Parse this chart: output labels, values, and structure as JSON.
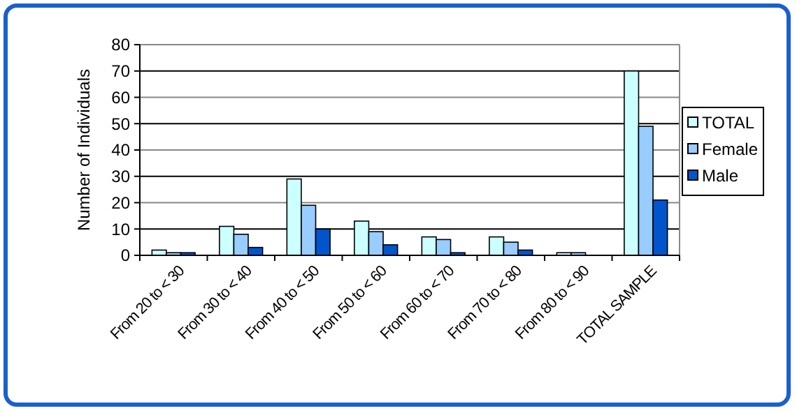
{
  "chart_data": {
    "type": "bar",
    "ylabel": "Number of Individuals",
    "categories": [
      "From 20 to < 30",
      "From 30 to < 40",
      "From 40 to < 50",
      "From 50 to < 60",
      "From 60 to < 70",
      "From 70 to < 80",
      "From 80 to < 90",
      "TOTAL SAMPLE"
    ],
    "series": [
      {
        "name": "TOTAL",
        "color": "#ccffff",
        "values": [
          2,
          11,
          29,
          13,
          7,
          7,
          1,
          70
        ]
      },
      {
        "name": "Female",
        "color": "#99ccff",
        "values": [
          1,
          8,
          19,
          9,
          6,
          5,
          1,
          49
        ]
      },
      {
        "name": "Male",
        "color": "#0055cc",
        "values": [
          1,
          3,
          10,
          4,
          1,
          2,
          0,
          21
        ]
      }
    ],
    "ylim": [
      0,
      80
    ],
    "yticks": [
      0,
      10,
      20,
      30,
      40,
      50,
      60,
      70,
      80
    ],
    "grid": "y",
    "legend": "right"
  }
}
